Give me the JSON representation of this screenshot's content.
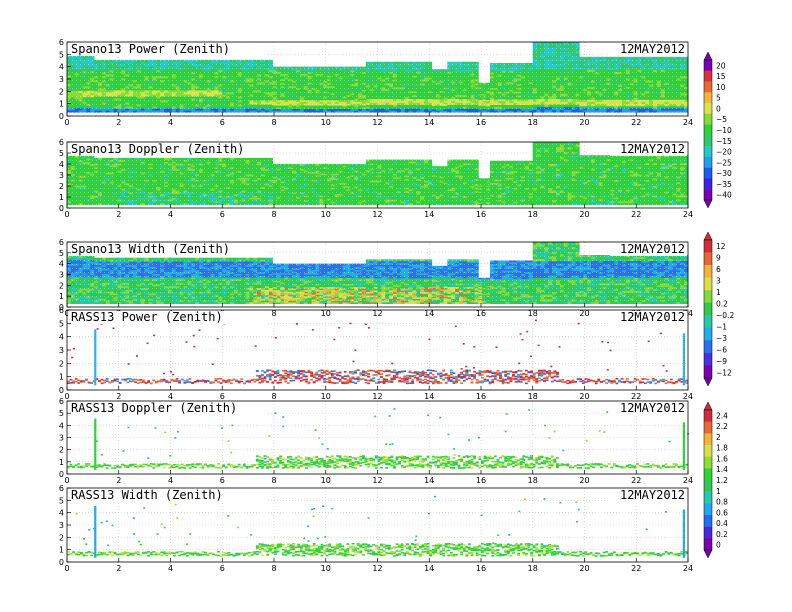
{
  "date_label": "12MAY2012",
  "colors": {
    "power_scale": [
      "#7a00b0",
      "#3c23e0",
      "#1d5cf0",
      "#1f9ff0",
      "#25c9c9",
      "#30c86a",
      "#31d03a",
      "#86dc32",
      "#d7e34b",
      "#f2b43c",
      "#ea6a33",
      "#d8323a"
    ],
    "width_scale": [
      "#7a00b0",
      "#4930e0",
      "#2b6ff0",
      "#21aee8",
      "#25c9a8",
      "#31c94a",
      "#7fdc3a",
      "#d8e04a",
      "#f0b33c",
      "#e76833",
      "#d32f3a"
    ],
    "rass_doppler_scale": [
      "#7a00b0",
      "#4a27e0",
      "#236ff0",
      "#21a9e8",
      "#25c9b0",
      "#2fc858",
      "#31d236",
      "#93dc34",
      "#d6e04a",
      "#f1b43c",
      "#e96835",
      "#d22c3a"
    ]
  },
  "chart_data": [
    {
      "type": "heatmap",
      "title": "Spano13 Power (Zenith)",
      "xlim": [
        0,
        24
      ],
      "ylim": [
        0,
        6
      ],
      "colorbar": "power"
    },
    {
      "type": "heatmap",
      "title": "Spano13 Doppler (Zenith)",
      "xlim": [
        0,
        24
      ],
      "ylim": [
        0,
        6
      ],
      "colorbar": "power"
    },
    {
      "type": "heatmap",
      "title": "Spano13 Width (Zenith)",
      "xlim": [
        0,
        24
      ],
      "ylim": [
        0,
        6
      ],
      "colorbar": "width"
    },
    {
      "type": "heatmap",
      "title": "RASS13 Power (Zenith)",
      "xlim": [
        0,
        24
      ],
      "ylim": [
        0,
        6
      ],
      "colorbar": "width"
    },
    {
      "type": "heatmap",
      "title": "RASS13 Doppler (Zenith)",
      "xlim": [
        0,
        24
      ],
      "ylim": [
        0,
        6
      ],
      "colorbar": "rass_doppler"
    },
    {
      "type": "heatmap",
      "title": "RASS13 Width (Zenith)",
      "xlim": [
        0,
        24
      ],
      "ylim": [
        0,
        6
      ],
      "colorbar": "rass_doppler"
    }
  ],
  "x_ticks": [
    "0",
    "2",
    "4",
    "6",
    "8",
    "10",
    "12",
    "14",
    "16",
    "18",
    "20",
    "22",
    "24"
  ],
  "y_ticks": [
    "0",
    "1",
    "2",
    "3",
    "4",
    "5",
    "6"
  ],
  "colorbars": {
    "power": {
      "labels": [
        "20",
        "15",
        "10",
        "5",
        "0",
        "−5",
        "−10",
        "−15",
        "−20",
        "−25",
        "−30",
        "−35",
        "−40"
      ]
    },
    "width": {
      "labels": [
        "12",
        "9",
        "6",
        "3",
        "1",
        "0.2",
        "−0.2",
        "−1",
        "−3",
        "−6",
        "−9",
        "−12"
      ]
    },
    "rass_doppler": {
      "labels": [
        "2.4",
        "2.2",
        "2",
        "1.8",
        "1.6",
        "1.4",
        "1.2",
        "1",
        "0.8",
        "0.6",
        "0.4",
        "0.2",
        "0"
      ]
    }
  }
}
